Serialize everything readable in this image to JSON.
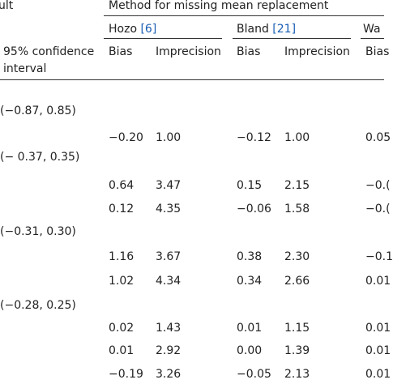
{
  "header": {
    "left_fragment": "ult",
    "group_title": "Method for missing mean replacement",
    "ci_line1": "95% confidence",
    "ci_line2": "interval",
    "methods": [
      {
        "name": "Hozo ",
        "ref": "[6]"
      },
      {
        "name": "Bland ",
        "ref": "[21]"
      },
      {
        "name": "Wa",
        "ref": ""
      }
    ],
    "sub": {
      "bias": "Bias",
      "imprecision": "Imprecision",
      "bias_clipped": "Bias"
    }
  },
  "groups": [
    {
      "ci": "(−0.87, 0.85)",
      "rows": [
        {
          "hozo_bias": "−0.20",
          "hozo_imp": "1.00",
          "bland_bias": "−0.12",
          "bland_imp": "1.00",
          "wan_bias": "0.05"
        }
      ]
    },
    {
      "ci": "(− 0.37, 0.35)",
      "rows": [
        {
          "hozo_bias": "0.64",
          "hozo_imp": "3.47",
          "bland_bias": "0.15",
          "bland_imp": "2.15",
          "wan_bias": "−0.("
        },
        {
          "hozo_bias": "0.12",
          "hozo_imp": "4.35",
          "bland_bias": "−0.06",
          "bland_imp": "1.58",
          "wan_bias": "−0.("
        }
      ]
    },
    {
      "ci": "(−0.31, 0.30)",
      "rows": [
        {
          "hozo_bias": "1.16",
          "hozo_imp": "3.67",
          "bland_bias": "0.38",
          "bland_imp": "2.30",
          "wan_bias": "−0.1"
        },
        {
          "hozo_bias": "1.02",
          "hozo_imp": "4.34",
          "bland_bias": "0.34",
          "bland_imp": "2.66",
          "wan_bias": "0.01"
        }
      ]
    },
    {
      "ci": "(−0.28, 0.25)",
      "rows": [
        {
          "hozo_bias": "0.02",
          "hozo_imp": "1.43",
          "bland_bias": "0.01",
          "bland_imp": "1.15",
          "wan_bias": "0.01"
        },
        {
          "hozo_bias": "0.01",
          "hozo_imp": "2.92",
          "bland_bias": "0.00",
          "bland_imp": "1.39",
          "wan_bias": "0.01"
        },
        {
          "hozo_bias": "−0.19",
          "hozo_imp": "3.26",
          "bland_bias": "−0.05",
          "bland_imp": "2.13",
          "wan_bias": "0.01"
        }
      ]
    }
  ]
}
